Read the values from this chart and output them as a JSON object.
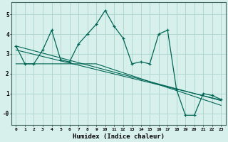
{
  "xlabel": "Humidex (Indice chaleur)",
  "bg_color": "#d8f0ec",
  "grid_color": "#b0d8d0",
  "line_color": "#006655",
  "x_data": [
    0,
    1,
    2,
    3,
    4,
    5,
    6,
    7,
    8,
    9,
    10,
    11,
    12,
    13,
    14,
    15,
    16,
    17,
    18,
    19,
    20,
    21,
    22,
    23
  ],
  "y_main": [
    3.4,
    2.5,
    2.5,
    3.2,
    4.2,
    2.7,
    2.6,
    3.5,
    4.0,
    4.5,
    5.2,
    4.4,
    3.8,
    2.5,
    2.6,
    2.5,
    4.0,
    4.2,
    1.2,
    -0.1,
    -0.1,
    1.0,
    0.9,
    0.7
  ],
  "y_trend1": [
    3.4,
    3.28,
    3.16,
    3.04,
    2.92,
    2.8,
    2.68,
    2.56,
    2.44,
    2.32,
    2.2,
    2.08,
    1.96,
    1.84,
    1.72,
    1.6,
    1.48,
    1.36,
    1.24,
    1.12,
    1.0,
    0.88,
    0.76,
    0.64
  ],
  "y_trend2": [
    3.2,
    3.09,
    2.98,
    2.87,
    2.76,
    2.65,
    2.54,
    2.43,
    2.32,
    2.21,
    2.1,
    1.99,
    1.88,
    1.77,
    1.66,
    1.55,
    1.44,
    1.33,
    1.22,
    1.11,
    1.0,
    0.89,
    0.78,
    0.67
  ],
  "y_trend3": [
    2.5,
    2.5,
    2.5,
    2.5,
    2.5,
    2.5,
    2.5,
    2.5,
    2.5,
    2.5,
    2.35,
    2.2,
    2.05,
    1.9,
    1.75,
    1.6,
    1.45,
    1.3,
    1.15,
    1.0,
    0.85,
    0.7,
    0.55,
    0.4
  ],
  "ylim": [
    -0.6,
    5.6
  ],
  "xlim": [
    -0.5,
    23.5
  ],
  "yticks": [
    0,
    1,
    2,
    3,
    4,
    5
  ],
  "ytick_labels": [
    "-0",
    "1",
    "2",
    "3",
    "4",
    "5"
  ],
  "xticks": [
    0,
    1,
    2,
    3,
    4,
    5,
    6,
    7,
    8,
    9,
    10,
    11,
    12,
    13,
    14,
    15,
    16,
    17,
    18,
    19,
    20,
    21,
    22,
    23
  ]
}
